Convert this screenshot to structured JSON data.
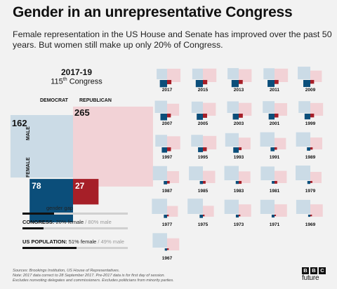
{
  "header": {
    "title": "Gender in an unrepresentative Congress",
    "subtitle": "Female representation in the US House and Senate has improved over the past 50 years. But women still make up only 20% of Congress."
  },
  "colors": {
    "democrat_male": "#cbdbe6",
    "republican_male": "#f2d2d6",
    "democrat_female": "#0b4e7a",
    "republican_female": "#a61f28"
  },
  "chart_data": {
    "type": "area",
    "main": {
      "year": "2017-19",
      "congress_number": "115",
      "congress_suffix": "th",
      "congress_word": "Congress",
      "column_labels": [
        "DEMOCRAT",
        "REPUBLICAN"
      ],
      "row_labels": [
        "MALE",
        "FEMALE"
      ],
      "values": {
        "democrat_male": 162,
        "republican_male": 265,
        "democrat_female": 78,
        "republican_female": 27
      }
    },
    "small_multiples": [
      {
        "year": "2017",
        "dm": 162,
        "rm": 265,
        "df": 78,
        "rf": 27
      },
      {
        "year": "2015",
        "dm": 168,
        "rm": 270,
        "df": 76,
        "rf": 28
      },
      {
        "year": "2013",
        "dm": 185,
        "rm": 247,
        "df": 76,
        "rf": 24
      },
      {
        "year": "2011",
        "dm": 180,
        "rm": 268,
        "df": 72,
        "rf": 24
      },
      {
        "year": "2009",
        "dm": 235,
        "rm": 196,
        "df": 73,
        "rf": 21
      },
      {
        "year": "2007",
        "dm": 223,
        "rm": 215,
        "df": 66,
        "rf": 21
      },
      {
        "year": "2005",
        "dm": 191,
        "rm": 247,
        "df": 57,
        "rf": 26
      },
      {
        "year": "2003",
        "dm": 199,
        "rm": 245,
        "df": 52,
        "rf": 25
      },
      {
        "year": "2001",
        "dm": 206,
        "rm": 236,
        "df": 51,
        "rf": 22
      },
      {
        "year": "1999",
        "dm": 206,
        "rm": 242,
        "df": 49,
        "rf": 21
      },
      {
        "year": "1997",
        "dm": 205,
        "rm": 256,
        "df": 42,
        "rf": 22
      },
      {
        "year": "1995",
        "dm": 205,
        "rm": 270,
        "df": 35,
        "rf": 22
      },
      {
        "year": "1993",
        "dm": 270,
        "rm": 207,
        "df": 44,
        "rf": 12
      },
      {
        "year": "1991",
        "dm": 305,
        "rm": 195,
        "df": 23,
        "rf": 9
      },
      {
        "year": "1989",
        "dm": 304,
        "rm": 210,
        "df": 17,
        "rf": 8
      },
      {
        "year": "1987",
        "dm": 300,
        "rm": 212,
        "df": 17,
        "rf": 10
      },
      {
        "year": "1985",
        "dm": 288,
        "rm": 223,
        "df": 14,
        "rf": 11
      },
      {
        "year": "1983",
        "dm": 306,
        "rm": 203,
        "df": 13,
        "rf": 12
      },
      {
        "year": "1981",
        "dm": 282,
        "rm": 222,
        "df": 11,
        "rf": 11
      },
      {
        "year": "1979",
        "dm": 322,
        "rm": 186,
        "df": 13,
        "rf": 6
      },
      {
        "year": "1977",
        "dm": 342,
        "rm": 173,
        "df": 16,
        "rf": 4
      },
      {
        "year": "1975",
        "dm": 347,
        "rm": 178,
        "df": 16,
        "rf": 4
      },
      {
        "year": "1973",
        "dm": 301,
        "rm": 228,
        "df": 12,
        "rf": 4
      },
      {
        "year": "1971",
        "dm": 298,
        "rm": 230,
        "df": 12,
        "rf": 3
      },
      {
        "year": "1969",
        "dm": 295,
        "rm": 229,
        "df": 7,
        "rf": 4
      },
      {
        "year": "1967",
        "dm": 310,
        "rm": 218,
        "df": 8,
        "rf": 4
      }
    ]
  },
  "legend": {
    "gap_label": "gender gap",
    "congress_label": "CONGRESS:",
    "congress_female": "20% female",
    "separator": "/",
    "congress_male": "80% male",
    "congress_female_fraction": 0.2,
    "population_label": "US POPULATION:",
    "population_female": "51% female",
    "population_male": "49% male",
    "population_female_fraction": 0.51
  },
  "footer": {
    "line1": "Sources: Brookings Institution, US House of Representatives.",
    "line2": "Note: 2017 data correct to 28 September 2017. Pre-2017 data is for first day of session.",
    "line3": "Excludes nonvoting delegates and commissioners. Excludes politicians from minority parties."
  },
  "logo": {
    "letters": [
      "B",
      "B",
      "C"
    ],
    "word": "future"
  }
}
